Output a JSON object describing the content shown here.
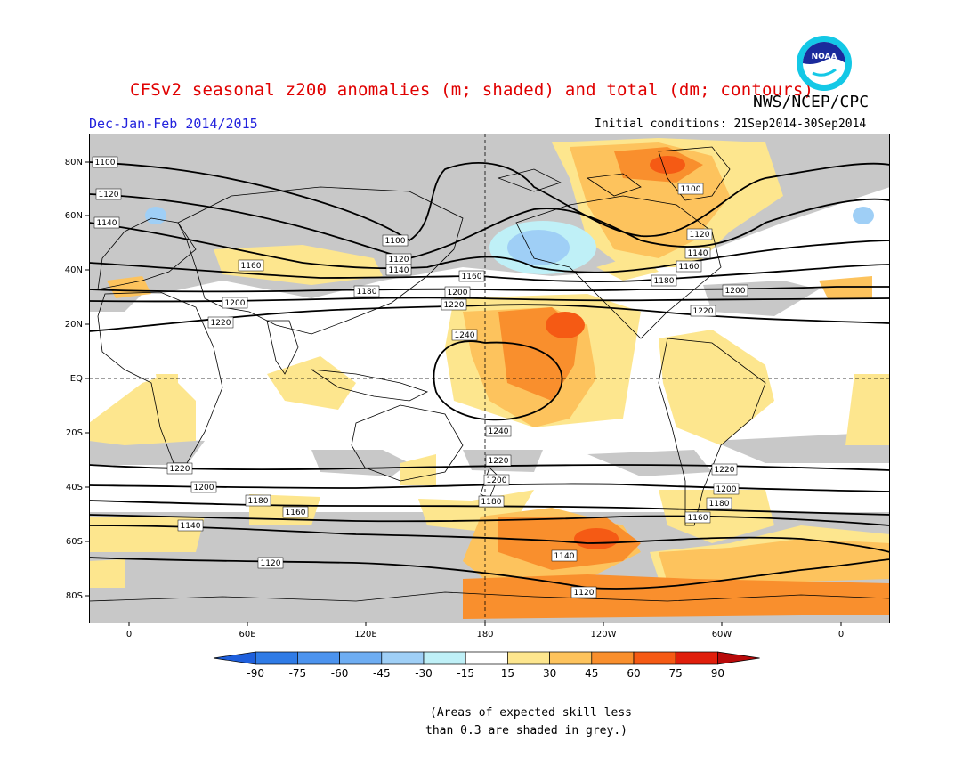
{
  "header": {
    "title": "CFSv2 seasonal z200 anomalies (m; shaded) and total (dm; contours)",
    "agency": "NWS/NCEP/CPC",
    "season": "Dec-Jan-Feb 2014/2015",
    "initial_conditions": "Initial conditions: 21Sep2014-30Sep2014",
    "logo_text": "NOAA"
  },
  "map": {
    "lat_labels": [
      "80N",
      "60N",
      "40N",
      "20N",
      "EQ",
      "20S",
      "40S",
      "60S",
      "80S"
    ],
    "lon_labels": [
      "0",
      "60E",
      "120E",
      "180",
      "120W",
      "60W",
      "0"
    ],
    "contour_labels": [
      "1100",
      "1120",
      "1140",
      "1160",
      "1180",
      "1200",
      "1220",
      "1240"
    ],
    "colors": {
      "grey_low_skill": "#c8c8c8",
      "land_outline": "#000000"
    }
  },
  "colorbar": {
    "labels": [
      "-90",
      "-75",
      "-60",
      "-45",
      "-30",
      "-15",
      "15",
      "30",
      "45",
      "60",
      "75",
      "90"
    ],
    "colors": [
      "#1e5fdc",
      "#2f7be6",
      "#4c93ee",
      "#6eadf2",
      "#9fcff6",
      "#bff0f7",
      "#ffffff",
      "#fde68e",
      "#fdc35d",
      "#f98f2d",
      "#f55a14",
      "#e01e0b",
      "#b80a0a"
    ]
  },
  "note": {
    "line1": "(Areas of expected skill less",
    "line2": "than 0.3 are shaded in grey.)"
  }
}
